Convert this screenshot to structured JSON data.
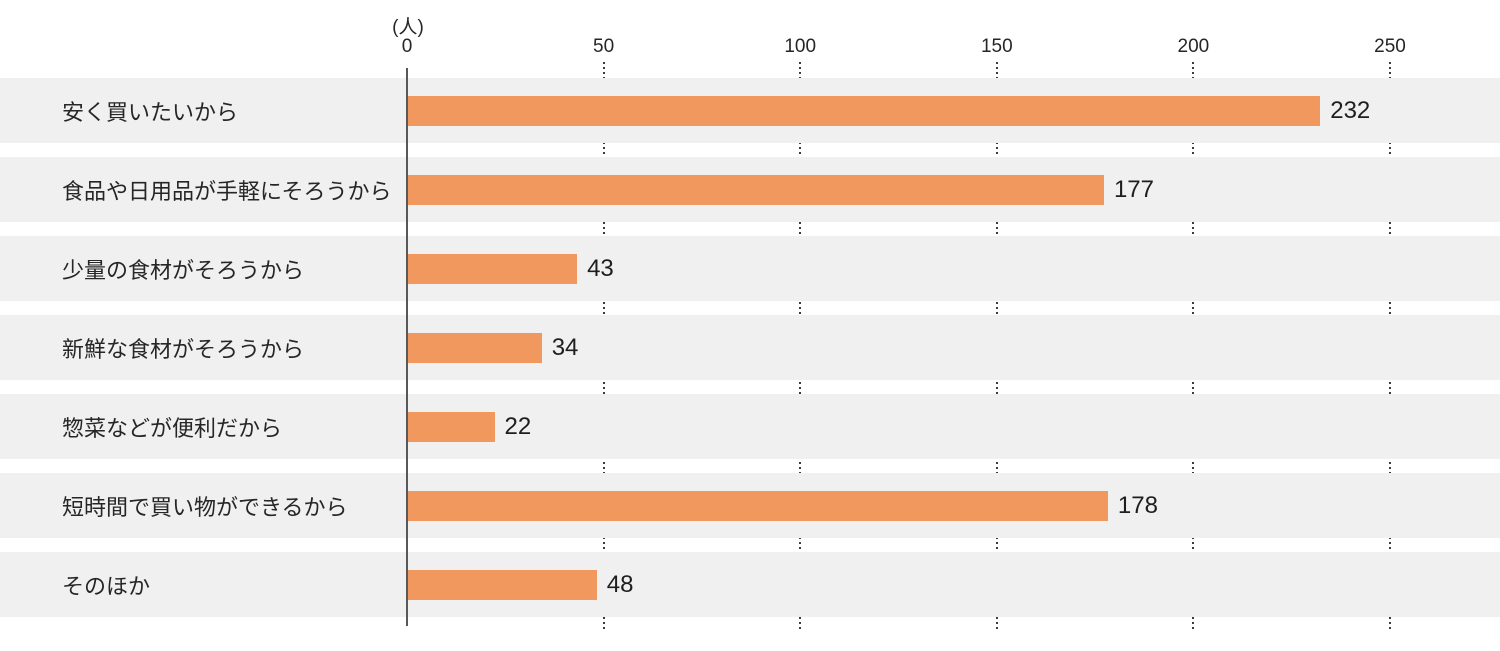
{
  "chart_data": {
    "type": "bar",
    "orientation": "horizontal",
    "title": "",
    "unit_label": "(人)",
    "categories": [
      "安く買いたいから",
      "食品や日用品が手軽にそろうから",
      "少量の食材がそろうから",
      "新鮮な食材がそろうから",
      "惣菜などが便利だから",
      "短時間で買い物ができるから",
      "そのほか"
    ],
    "values": [
      232,
      177,
      43,
      34,
      22,
      178,
      48
    ],
    "xlim": [
      0,
      250
    ],
    "x_ticks": [
      0,
      50,
      100,
      150,
      200,
      250
    ],
    "legend": "none",
    "grid": "vertical-dotted-between-rows",
    "colors": {
      "bar": "#F0985E",
      "row_background": "#F0F0F0",
      "axis_line": "#595757",
      "gridline_dots": "#3C3C3C",
      "label_text": "#262626",
      "value_text": "#1E1E1E"
    }
  }
}
